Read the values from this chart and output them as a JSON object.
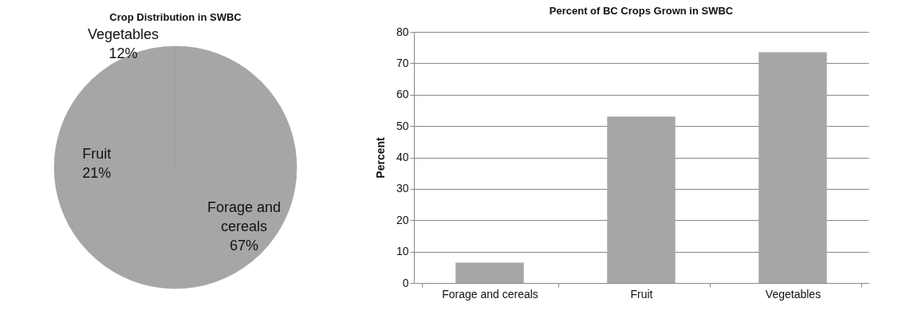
{
  "chart_data": [
    {
      "type": "pie",
      "title": "Crop Distribution in SWBC",
      "categories": [
        "Forage and cereals",
        "Fruit",
        "Vegetables"
      ],
      "values": [
        67,
        21,
        12
      ],
      "colors": [
        "#a6a6a6",
        "#a6a6a6",
        "#a6a6a6"
      ],
      "value_labels": [
        "67%",
        "21%",
        "12%"
      ]
    },
    {
      "type": "bar",
      "title": "Percent of BC Crops Grown in SWBC",
      "ylabel": "Percent",
      "categories": [
        "Forage and cereals",
        "Fruit",
        "Vegetables"
      ],
      "values": [
        6.5,
        53,
        73.5
      ],
      "color": "#a6a6a6",
      "ylim": [
        0,
        80
      ],
      "yticks": [
        0,
        10,
        20,
        30,
        40,
        50,
        60,
        70,
        80
      ],
      "grid": "y"
    }
  ]
}
